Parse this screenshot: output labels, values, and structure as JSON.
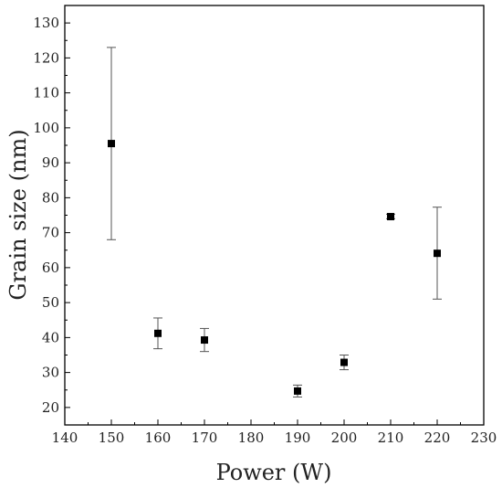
{
  "chart_data": {
    "type": "scatter",
    "title": "",
    "xlabel": "Power (W)",
    "ylabel": "Grain size (nm)",
    "xlim": [
      140,
      230
    ],
    "ylim": [
      15,
      135
    ],
    "xticks": [
      140,
      150,
      160,
      170,
      180,
      190,
      200,
      210,
      220,
      230
    ],
    "yticks": [
      20,
      30,
      40,
      50,
      60,
      70,
      80,
      90,
      100,
      110,
      120,
      130
    ],
    "grid": false,
    "legend": "none",
    "marker": "square",
    "marker_color": "#000000",
    "errorbar_color": "#555555",
    "series": [
      {
        "x": [
          150,
          160,
          170,
          190,
          200,
          210,
          220
        ],
        "y": [
          95.5,
          41.2,
          39.3,
          24.7,
          32.9,
          74.6,
          64.1
        ],
        "y_lower": [
          68,
          36.8,
          36,
          23,
          30.8,
          74,
          51
        ],
        "y_upper": [
          123,
          45.6,
          42.6,
          26.4,
          35,
          75.3,
          77.3
        ]
      }
    ]
  }
}
